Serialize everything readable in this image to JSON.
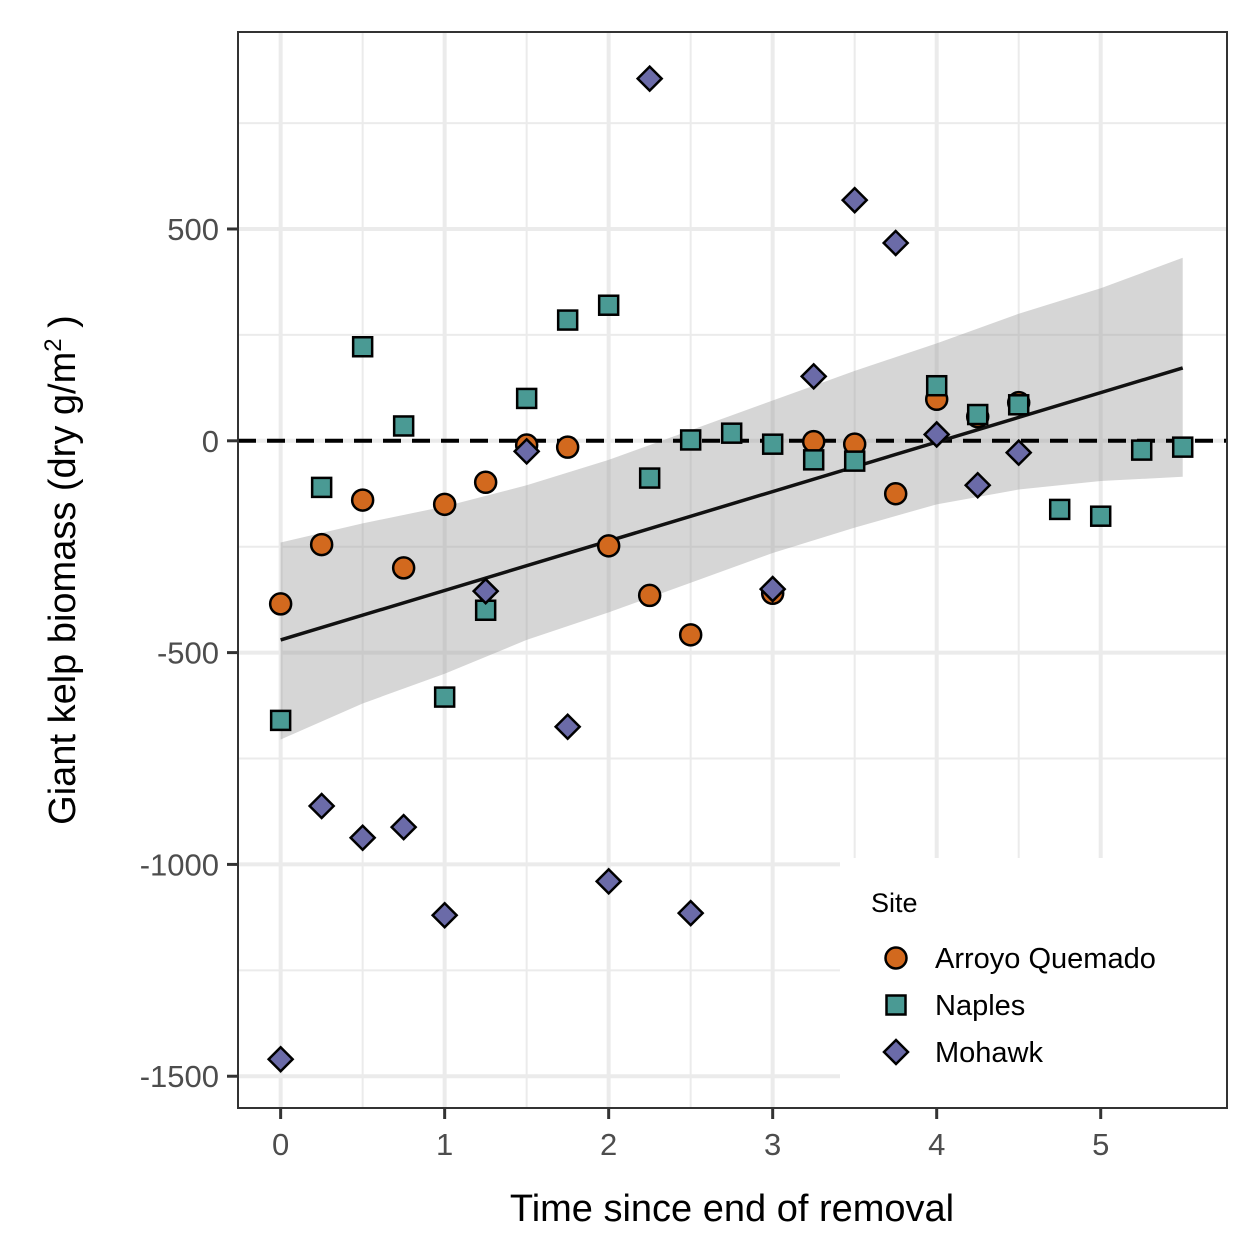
{
  "chart_data": {
    "type": "scatter",
    "xlabel": "Time since end of removal",
    "ylabel": "Giant kelp biomass (dry g/m",
    "ylabel_superscript": "2",
    "ylabel_close": " )",
    "xlim": [
      -0.26,
      5.77
    ],
    "ylim": [
      -1575,
      965
    ],
    "x_ticks": [
      0,
      1,
      2,
      3,
      4,
      5
    ],
    "y_ticks": [
      -1500,
      -1000,
      -500,
      0,
      500
    ],
    "x_tick_labels": [
      "0",
      "1",
      "2",
      "3",
      "4",
      "5"
    ],
    "y_tick_labels": [
      "-1500",
      "-1000",
      "-500",
      "0",
      "500"
    ],
    "grid": true,
    "reference_line": {
      "y": 0,
      "style": "dashed"
    },
    "trend_line": {
      "x": [
        0,
        5.5
      ],
      "y": [
        -470,
        172
      ]
    },
    "confidence_band": {
      "x": [
        0,
        0.5,
        1,
        1.5,
        2,
        2.5,
        3,
        3.5,
        4,
        4.5,
        5,
        5.5
      ],
      "lower": [
        -705,
        -620,
        -550,
        -470,
        -405,
        -335,
        -265,
        -205,
        -150,
        -115,
        -95,
        -85
      ],
      "upper": [
        -240,
        -195,
        -155,
        -105,
        -45,
        25,
        95,
        165,
        230,
        300,
        360,
        432
      ]
    },
    "legend": {
      "title": "Site",
      "position": "bottom-right",
      "entries": [
        "Arroyo Quemado",
        "Naples",
        "Mohawk"
      ]
    },
    "series": [
      {
        "name": "Arroyo Quemado",
        "marker": "circle",
        "color": "#d2691e",
        "points": [
          [
            0,
            -385
          ],
          [
            0.25,
            -245
          ],
          [
            0.5,
            -140
          ],
          [
            0.75,
            -300
          ],
          [
            1,
            -150
          ],
          [
            1.25,
            -98
          ],
          [
            1.5,
            -10
          ],
          [
            1.75,
            -15
          ],
          [
            2,
            -248
          ],
          [
            2.25,
            -365
          ],
          [
            2.5,
            -458
          ],
          [
            3,
            -360
          ],
          [
            3.25,
            -2
          ],
          [
            3.5,
            -8
          ],
          [
            3.75,
            -125
          ],
          [
            4,
            98
          ],
          [
            4.25,
            57
          ],
          [
            4.5,
            90
          ]
        ]
      },
      {
        "name": "Naples",
        "marker": "square",
        "color": "#4a9a94",
        "points": [
          [
            0,
            -660
          ],
          [
            0.25,
            -110
          ],
          [
            0.5,
            222
          ],
          [
            0.75,
            35
          ],
          [
            1,
            -605
          ],
          [
            1.25,
            -400
          ],
          [
            1.5,
            100
          ],
          [
            1.75,
            285
          ],
          [
            2,
            320
          ],
          [
            2.25,
            -88
          ],
          [
            2.5,
            2
          ],
          [
            2.75,
            18
          ],
          [
            3,
            -8
          ],
          [
            3.25,
            -45
          ],
          [
            3.5,
            -48
          ],
          [
            4,
            130
          ],
          [
            4.25,
            62
          ],
          [
            4.5,
            85
          ],
          [
            4.75,
            -162
          ],
          [
            5,
            -178
          ],
          [
            5.25,
            -22
          ],
          [
            5.5,
            -15
          ]
        ]
      },
      {
        "name": "Mohawk",
        "marker": "diamond",
        "color": "#6b6ba8",
        "points": [
          [
            0,
            -1460
          ],
          [
            0.25,
            -862
          ],
          [
            0.5,
            -937
          ],
          [
            0.75,
            -912
          ],
          [
            1,
            -1120
          ],
          [
            1.25,
            -355
          ],
          [
            1.5,
            -25
          ],
          [
            1.75,
            -675
          ],
          [
            2,
            -1040
          ],
          [
            2.25,
            855
          ],
          [
            2.5,
            -1115
          ],
          [
            3,
            -350
          ],
          [
            3.25,
            152
          ],
          [
            3.5,
            568
          ],
          [
            3.75,
            467
          ],
          [
            4,
            15
          ],
          [
            4.25,
            -105
          ],
          [
            4.5,
            -28
          ]
        ]
      }
    ]
  }
}
